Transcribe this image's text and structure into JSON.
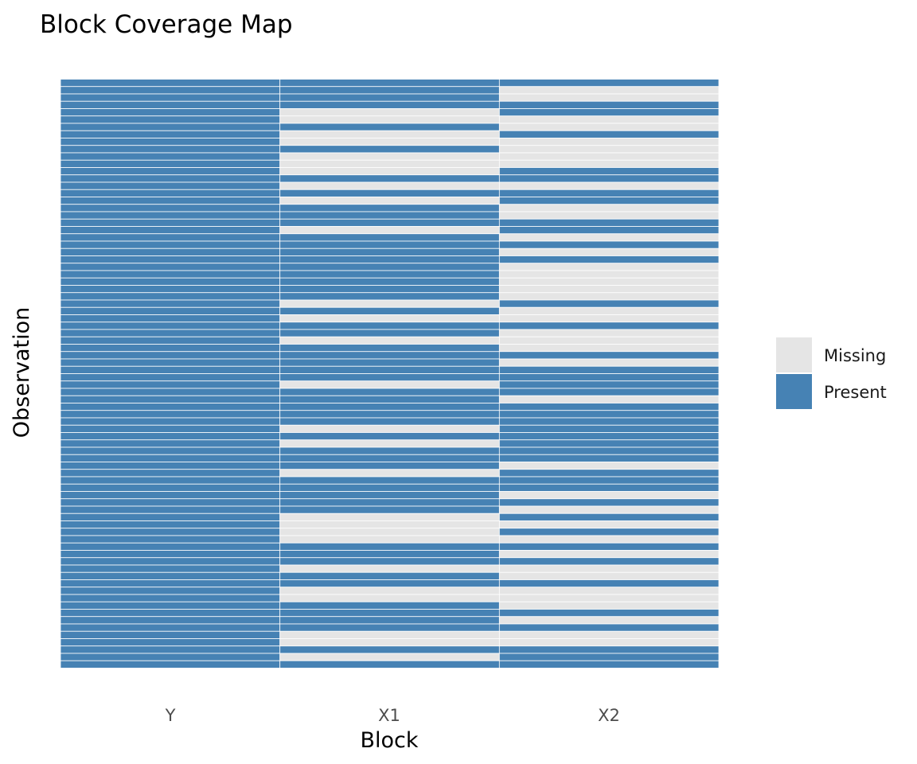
{
  "chart_data": {
    "type": "heatmap",
    "title": "Block Coverage Map",
    "xlabel": "Block",
    "ylabel": "Observation",
    "categories": [
      "Y",
      "X1",
      "X2"
    ],
    "observations": 80,
    "grid": false,
    "legend": {
      "position": "right",
      "entries": [
        {
          "key": "missing",
          "label": "Missing",
          "color": "#e5e5e5"
        },
        {
          "key": "present",
          "label": "Present",
          "color": "#4682b4"
        }
      ]
    },
    "series": [
      {
        "block": "Y",
        "present": [
          1,
          1,
          1,
          1,
          1,
          1,
          1,
          1,
          1,
          1,
          1,
          1,
          1,
          1,
          1,
          1,
          1,
          1,
          1,
          1,
          1,
          1,
          1,
          1,
          1,
          1,
          1,
          1,
          1,
          1,
          1,
          1,
          1,
          1,
          1,
          1,
          1,
          1,
          1,
          1,
          1,
          1,
          1,
          1,
          1,
          1,
          1,
          1,
          1,
          1,
          1,
          1,
          1,
          1,
          1,
          1,
          1,
          1,
          1,
          1,
          1,
          1,
          1,
          1,
          1,
          1,
          1,
          1,
          1,
          1,
          1,
          1,
          1,
          1,
          1,
          1,
          1,
          1,
          1,
          1
        ]
      },
      {
        "block": "X1",
        "present": [
          1,
          1,
          1,
          1,
          0,
          0,
          1,
          0,
          0,
          1,
          0,
          0,
          0,
          1,
          0,
          1,
          0,
          1,
          1,
          1,
          0,
          1,
          1,
          1,
          1,
          1,
          1,
          1,
          1,
          1,
          0,
          1,
          0,
          1,
          1,
          0,
          1,
          1,
          1,
          1,
          1,
          0,
          1,
          1,
          1,
          1,
          1,
          0,
          1,
          0,
          1,
          1,
          1,
          0,
          1,
          1,
          1,
          1,
          1,
          0,
          0,
          0,
          0,
          1,
          1,
          1,
          0,
          1,
          1,
          0,
          0,
          1,
          1,
          1,
          1,
          0,
          0,
          1,
          0,
          1
        ]
      },
      {
        "block": "X2",
        "present": [
          1,
          0,
          0,
          1,
          1,
          0,
          0,
          1,
          0,
          0,
          0,
          0,
          1,
          1,
          0,
          1,
          1,
          0,
          0,
          1,
          1,
          0,
          1,
          0,
          1,
          0,
          0,
          0,
          0,
          0,
          1,
          0,
          0,
          1,
          0,
          0,
          0,
          1,
          0,
          1,
          1,
          1,
          1,
          0,
          1,
          1,
          1,
          1,
          1,
          1,
          1,
          1,
          0,
          1,
          1,
          1,
          0,
          1,
          0,
          1,
          0,
          1,
          0,
          1,
          0,
          1,
          0,
          0,
          1,
          0,
          0,
          0,
          1,
          0,
          1,
          0,
          0,
          1,
          1,
          1
        ]
      }
    ]
  }
}
